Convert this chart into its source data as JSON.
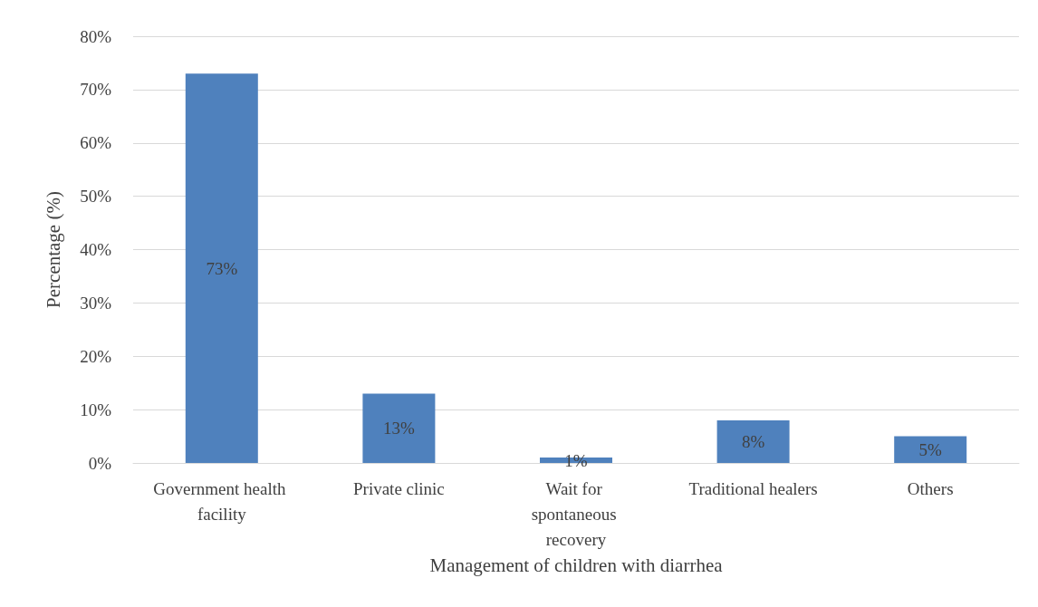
{
  "chart_data": {
    "type": "bar",
    "xlabel": "Management of children with diarrhea",
    "ylabel": "Percentage (%)",
    "categories": [
      "Government health facility",
      "Private clinic",
      "Wait for spontaneous recovery",
      "Traditional healers",
      "Others"
    ],
    "values": [
      73,
      13,
      1,
      8,
      5
    ],
    "value_labels": [
      "73%",
      "13%",
      "1%",
      "8%",
      "5%"
    ],
    "color": "#4f81bd",
    "ylim": [
      0,
      80
    ],
    "yticks": [
      {
        "value": 0,
        "label": "0%"
      },
      {
        "value": 10,
        "label": "10%"
      },
      {
        "value": 20,
        "label": "20%"
      },
      {
        "value": 30,
        "label": "30%"
      },
      {
        "value": 40,
        "label": "40%"
      },
      {
        "value": 50,
        "label": "50%"
      },
      {
        "value": 60,
        "label": "60%"
      },
      {
        "value": 70,
        "label": "70%"
      },
      {
        "value": 80,
        "label": "80%"
      }
    ],
    "grid": "y"
  }
}
